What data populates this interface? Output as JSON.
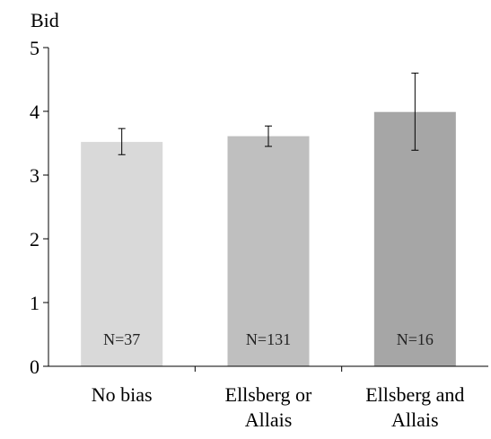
{
  "chart_data": {
    "type": "bar",
    "ylabel": "Bid",
    "xlabel": "",
    "title": "",
    "ylim": [
      0,
      5
    ],
    "yticks": [
      0,
      1,
      2,
      3,
      4,
      5
    ],
    "grid": false,
    "categories": [
      [
        "No bias"
      ],
      [
        "Ellsberg or",
        "Allais"
      ],
      [
        "Ellsberg and",
        "Allais"
      ]
    ],
    "values": [
      3.52,
      3.61,
      3.99
    ],
    "error_low": [
      3.32,
      3.45,
      3.39
    ],
    "error_high": [
      3.73,
      3.77,
      4.6
    ],
    "bar_labels": [
      "N=37",
      "N=131",
      "N=16"
    ],
    "colors": [
      "#d9d9d9",
      "#bfbfbf",
      "#a6a6a6"
    ]
  }
}
